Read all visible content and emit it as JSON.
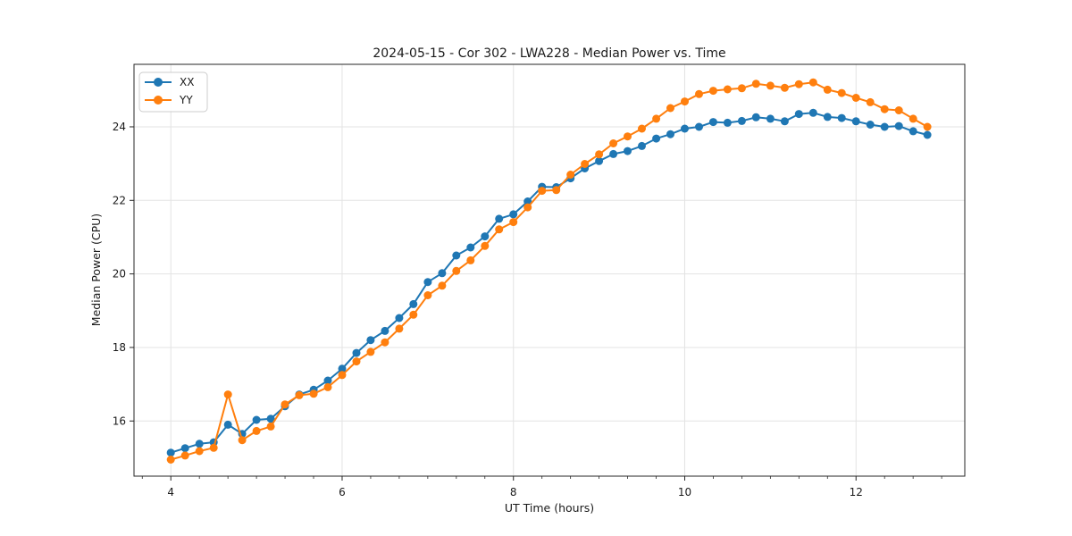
{
  "chart_data": {
    "type": "line",
    "title": "2024-05-15 - Cor 302 - LWA228 - Median Power vs. Time",
    "xlabel": "UT Time (hours)",
    "ylabel": "Median Power (CPU)",
    "xlim": [
      3.57,
      13.27
    ],
    "ylim": [
      14.5,
      25.7
    ],
    "xticks": [
      4,
      6,
      8,
      10,
      12
    ],
    "yticks": [
      16,
      18,
      20,
      22,
      24
    ],
    "x_minor_step": 0.33333,
    "grid": true,
    "legend_position": "upper left",
    "x": [
      4.0,
      4.167,
      4.333,
      4.5,
      4.667,
      4.833,
      5.0,
      5.167,
      5.333,
      5.5,
      5.667,
      5.833,
      6.0,
      6.167,
      6.333,
      6.5,
      6.667,
      6.833,
      7.0,
      7.167,
      7.333,
      7.5,
      7.667,
      7.833,
      8.0,
      8.167,
      8.333,
      8.5,
      8.667,
      8.833,
      9.0,
      9.167,
      9.333,
      9.5,
      9.667,
      9.833,
      10.0,
      10.167,
      10.333,
      10.5,
      10.667,
      10.833,
      11.0,
      11.167,
      11.333,
      11.5,
      11.667,
      11.833,
      12.0,
      12.167,
      12.333,
      12.5,
      12.667,
      12.833
    ],
    "series": [
      {
        "name": "XX",
        "color": "#1f77b4",
        "values": [
          15.14,
          15.26,
          15.38,
          15.42,
          15.9,
          15.65,
          16.03,
          16.06,
          16.4,
          16.72,
          16.85,
          17.1,
          17.42,
          17.85,
          18.2,
          18.45,
          18.8,
          19.18,
          19.78,
          20.02,
          20.5,
          20.72,
          21.02,
          21.5,
          21.62,
          21.97,
          22.37,
          22.36,
          22.6,
          22.87,
          23.07,
          23.26,
          23.34,
          23.48,
          23.68,
          23.8,
          23.95,
          24.0,
          24.13,
          24.11,
          24.16,
          24.26,
          24.22,
          24.15,
          24.35,
          24.38,
          24.27,
          24.24,
          24.15,
          24.06,
          24.0,
          24.02,
          23.88,
          23.78
        ]
      },
      {
        "name": "YY",
        "color": "#ff7f0e",
        "values": [
          14.95,
          15.06,
          15.18,
          15.27,
          16.72,
          15.48,
          15.73,
          15.85,
          16.45,
          16.7,
          16.74,
          16.92,
          17.25,
          17.62,
          17.88,
          18.14,
          18.51,
          18.89,
          19.42,
          19.68,
          20.08,
          20.37,
          20.76,
          21.21,
          21.41,
          21.81,
          22.26,
          22.28,
          22.7,
          22.99,
          23.25,
          23.55,
          23.74,
          23.95,
          24.22,
          24.51,
          24.69,
          24.89,
          24.98,
          25.02,
          25.05,
          25.17,
          25.12,
          25.06,
          25.16,
          25.21,
          25.01,
          24.92,
          24.79,
          24.67,
          24.48,
          24.45,
          24.22,
          24.0
        ]
      }
    ],
    "colors": {
      "grid": "#e3e3e3",
      "spine": "#262626",
      "tick": "#262626",
      "legend_border": "#cccccc",
      "background": "#ffffff"
    }
  }
}
